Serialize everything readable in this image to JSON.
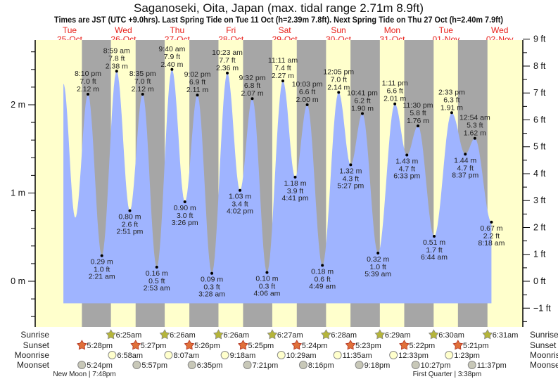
{
  "title": "Saganoseki, Oita, Japan (max. tidal range 2.71m 8.9ft)",
  "subtitle": "Times are JST (UTC +9.0hrs). Last Spring Tide on Tue 11 Oct (h=2.39m 7.8ft). Next Spring Tide on Thu 27 Oct (h=2.40m 7.9ft)",
  "colors": {
    "day": "#ffffcc",
    "night": "#a6a6a6",
    "water": "#9fb4ff",
    "day_label": "#e8201a",
    "sunrise": "#b5b53a",
    "sunset": "#e0703a",
    "moonrise": "#ffffcc",
    "moonset": "#c8c8b8"
  },
  "chart_data": {
    "type": "area",
    "title": "Saganoseki, Oita, Japan (max. tidal range 2.71m 8.9ft)",
    "x_unit": "hours since 00:00 Tue 25-Oct (JST)",
    "days": [
      {
        "dow": "Tue",
        "date": "25-Oct"
      },
      {
        "dow": "Wed",
        "date": "26-Oct"
      },
      {
        "dow": "Thu",
        "date": "27-Oct"
      },
      {
        "dow": "Fri",
        "date": "28-Oct"
      },
      {
        "dow": "Sat",
        "date": "29-Oct"
      },
      {
        "dow": "Sun",
        "date": "30-Oct"
      },
      {
        "dow": "Mon",
        "date": "31-Oct"
      },
      {
        "dow": "Tue",
        "date": "01-Nov"
      },
      {
        "dow": "Wed",
        "date": "02-Nov"
      }
    ],
    "y_left": {
      "unit": "m",
      "range": [
        -0.35,
        2.75
      ],
      "ticks": [
        {
          "v": 0,
          "label": "0 m"
        },
        {
          "v": 1,
          "label": "1 m"
        },
        {
          "v": 2,
          "label": "2 m"
        }
      ]
    },
    "y_right": {
      "unit": "ft",
      "ticks": [
        "−1 ft",
        "0 ft",
        "1 ft",
        "2 ft",
        "3 ft",
        "4 ft",
        "5 ft",
        "6 ft",
        "7 ft",
        "8 ft",
        "9 ft"
      ]
    },
    "curve_start": [
      {
        "t": 9.2,
        "m": 2.24
      },
      {
        "t": 14.5,
        "m": 0.72
      }
    ],
    "extremes": [
      {
        "t": 20.17,
        "m": 2.12,
        "m_label": "2.12 m",
        "ft": "7.0 ft",
        "time": "8:10 pm",
        "type": "high"
      },
      {
        "t": 26.35,
        "m": 0.29,
        "m_label": "0.29 m",
        "ft": "1.0 ft",
        "time": "2:21 am",
        "type": "low"
      },
      {
        "t": 32.98,
        "m": 2.38,
        "m_label": "2.38 m",
        "ft": "7.8 ft",
        "time": "8:59 am",
        "type": "high"
      },
      {
        "t": 38.85,
        "m": 0.8,
        "m_label": "0.80 m",
        "ft": "2.6 ft",
        "time": "2:51 pm",
        "type": "low"
      },
      {
        "t": 44.58,
        "m": 2.12,
        "m_label": "2.12 m",
        "ft": "7.0 ft",
        "time": "8:35 pm",
        "type": "high"
      },
      {
        "t": 50.88,
        "m": 0.16,
        "m_label": "0.16 m",
        "ft": "0.5 ft",
        "time": "2:53 am",
        "type": "low"
      },
      {
        "t": 57.67,
        "m": 2.4,
        "m_label": "2.40 m",
        "ft": "7.9 ft",
        "time": "9:40 am",
        "type": "high"
      },
      {
        "t": 63.43,
        "m": 0.9,
        "m_label": "0.90 m",
        "ft": "3.0 ft",
        "time": "3:26 pm",
        "type": "low"
      },
      {
        "t": 69.03,
        "m": 2.11,
        "m_label": "2.11 m",
        "ft": "6.9 ft",
        "time": "9:02 pm",
        "type": "high"
      },
      {
        "t": 75.47,
        "m": 0.09,
        "m_label": "0.09 m",
        "ft": "0.3 ft",
        "time": "3:28 am",
        "type": "low"
      },
      {
        "t": 82.38,
        "m": 2.36,
        "m_label": "2.36 m",
        "ft": "7.7 ft",
        "time": "10:23 am",
        "type": "high"
      },
      {
        "t": 88.03,
        "m": 1.03,
        "m_label": "1.03 m",
        "ft": "3.4 ft",
        "time": "4:02 pm",
        "type": "low"
      },
      {
        "t": 93.53,
        "m": 2.07,
        "m_label": "2.07 m",
        "ft": "6.8 ft",
        "time": "9:32 pm",
        "type": "high"
      },
      {
        "t": 100.1,
        "m": 0.1,
        "m_label": "0.10 m",
        "ft": "0.3 ft",
        "time": "4:06 am",
        "type": "low"
      },
      {
        "t": 107.18,
        "m": 2.27,
        "m_label": "2.27 m",
        "ft": "7.4 ft",
        "time": "11:11 am",
        "type": "high"
      },
      {
        "t": 112.68,
        "m": 1.18,
        "m_label": "1.18 m",
        "ft": "3.9 ft",
        "time": "4:41 pm",
        "type": "low"
      },
      {
        "t": 118.05,
        "m": 2.0,
        "m_label": "2.00 m",
        "ft": "6.6 ft",
        "time": "10:03 pm",
        "type": "high"
      },
      {
        "t": 124.82,
        "m": 0.18,
        "m_label": "0.18 m",
        "ft": "0.6 ft",
        "time": "4:49 am",
        "type": "low"
      },
      {
        "t": 132.08,
        "m": 2.14,
        "m_label": "2.14 m",
        "ft": "7.0 ft",
        "time": "12:05 pm",
        "type": "high"
      },
      {
        "t": 137.45,
        "m": 1.32,
        "m_label": "1.32 m",
        "ft": "4.3 ft",
        "time": "5:27 pm",
        "type": "low"
      },
      {
        "t": 142.68,
        "m": 1.9,
        "m_label": "1.90 m",
        "ft": "6.2 ft",
        "time": "10:41 pm",
        "type": "high"
      },
      {
        "t": 149.65,
        "m": 0.32,
        "m_label": "0.32 m",
        "ft": "1.0 ft",
        "time": "5:39 am",
        "type": "low"
      },
      {
        "t": 157.18,
        "m": 2.01,
        "m_label": "2.01 m",
        "ft": "6.6 ft",
        "time": "1:11 pm",
        "type": "high"
      },
      {
        "t": 162.55,
        "m": 1.43,
        "m_label": "1.43 m",
        "ft": "4.7 ft",
        "time": "6:33 pm",
        "type": "low"
      },
      {
        "t": 167.5,
        "m": 1.76,
        "m_label": "1.76 m",
        "ft": "5.8 ft",
        "time": "11:30 pm",
        "type": "high"
      },
      {
        "t": 174.73,
        "m": 0.51,
        "m_label": "0.51 m",
        "ft": "1.7 ft",
        "time": "6:44 am",
        "type": "low"
      },
      {
        "t": 182.55,
        "m": 1.91,
        "m_label": "1.91 m",
        "ft": "6.3 ft",
        "time": "2:33 pm",
        "type": "high"
      },
      {
        "t": 188.62,
        "m": 1.44,
        "m_label": "1.44 m",
        "ft": "4.7 ft",
        "time": "8:37 pm",
        "type": "low"
      },
      {
        "t": 192.9,
        "m": 1.62,
        "m_label": "1.62 m",
        "ft": "5.3 ft",
        "time": "12:54 am",
        "type": "high"
      },
      {
        "t": 200.3,
        "m": 0.67,
        "m_label": "0.67 m",
        "ft": "2.2 ft",
        "time": "8:18 am",
        "type": "low"
      }
    ],
    "rows": {
      "labels": {
        "sunrise": "Sunrise",
        "sunset": "Sunset",
        "moonrise": "Moonrise",
        "moonset": "Moonset"
      },
      "sunrise": [
        {
          "t": 30.42,
          "label": "6:25am"
        },
        {
          "t": 54.43,
          "label": "6:26am"
        },
        {
          "t": 78.43,
          "label": "6:26am"
        },
        {
          "t": 102.45,
          "label": "6:27am"
        },
        {
          "t": 126.47,
          "label": "6:28am"
        },
        {
          "t": 150.48,
          "label": "6:29am"
        },
        {
          "t": 174.5,
          "label": "6:30am"
        },
        {
          "t": 198.52,
          "label": "6:31am"
        }
      ],
      "sunset": [
        {
          "t": 17.47,
          "label": "5:28pm"
        },
        {
          "t": 41.45,
          "label": "5:27pm"
        },
        {
          "t": 65.43,
          "label": "5:26pm"
        },
        {
          "t": 89.42,
          "label": "5:25pm"
        },
        {
          "t": 113.4,
          "label": "5:24pm"
        },
        {
          "t": 137.38,
          "label": "5:23pm"
        },
        {
          "t": 161.37,
          "label": "5:22pm"
        },
        {
          "t": 185.35,
          "label": "5:21pm"
        }
      ],
      "moonrise": [
        {
          "t": 30.97,
          "label": "6:58am"
        },
        {
          "t": 56.12,
          "label": "8:07am"
        },
        {
          "t": 81.3,
          "label": "9:18am"
        },
        {
          "t": 106.48,
          "label": "10:29am"
        },
        {
          "t": 131.58,
          "label": "11:35am"
        },
        {
          "t": 156.55,
          "label": "12:33pm"
        },
        {
          "t": 181.38,
          "label": "1:23pm"
        }
      ],
      "moonset": [
        {
          "t": 17.4,
          "label": "5:24pm"
        },
        {
          "t": 41.95,
          "label": "5:57pm"
        },
        {
          "t": 66.58,
          "label": "6:35pm"
        },
        {
          "t": 91.35,
          "label": "7:21pm"
        },
        {
          "t": 116.27,
          "label": "8:16pm"
        },
        {
          "t": 141.3,
          "label": "9:18pm"
        },
        {
          "t": 166.45,
          "label": "10:27pm"
        },
        {
          "t": 191.62,
          "label": "11:37pm"
        }
      ],
      "phases": [
        {
          "t": 18.6,
          "label": "New Moon | 7:48pm"
        },
        {
          "t": 180.5,
          "label": "First Quarter | 3:38pm"
        }
      ]
    }
  }
}
